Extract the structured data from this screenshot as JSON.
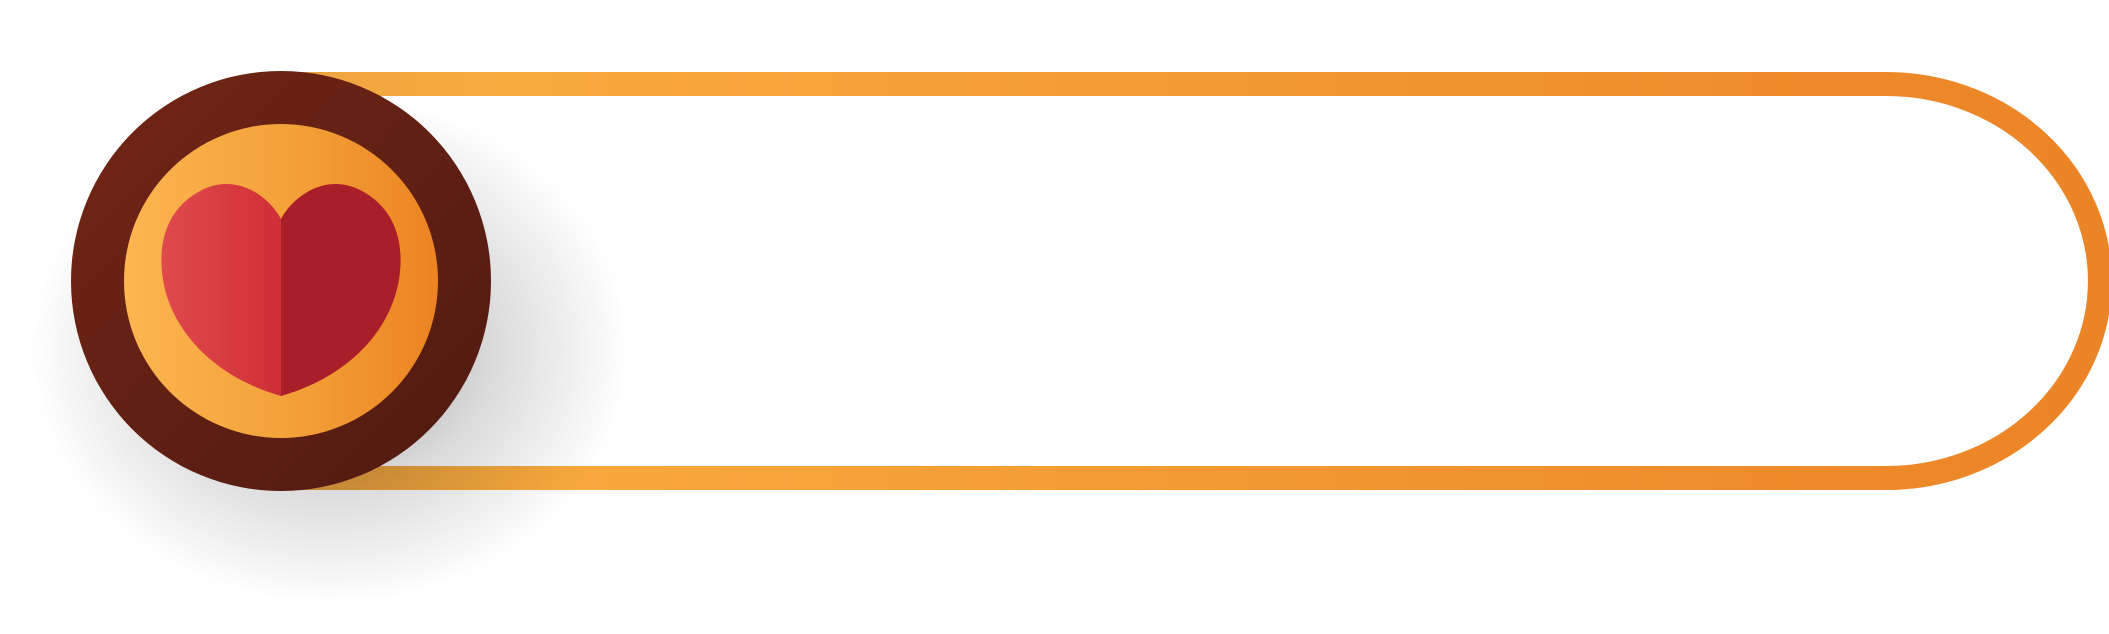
{
  "banner": {
    "label_text": "",
    "icon": "heart-icon",
    "colors": {
      "frame_orange_light": "#FBB040",
      "frame_orange_dark": "#EB8426",
      "medallion_brown_light": "#732616",
      "medallion_brown_dark": "#4F1A10",
      "heart_red_light": "#E04A4C",
      "heart_red_dark": "#A91E28",
      "background": "#FFFFFF"
    }
  }
}
